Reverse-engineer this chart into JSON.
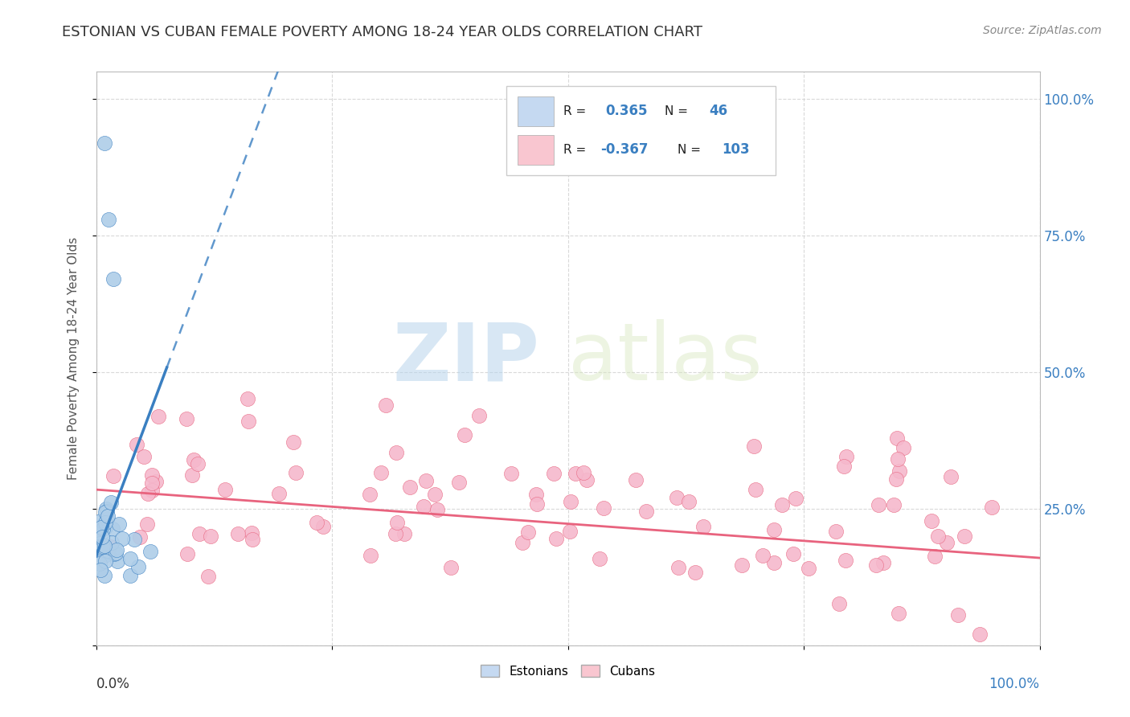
{
  "title": "ESTONIAN VS CUBAN FEMALE POVERTY AMONG 18-24 YEAR OLDS CORRELATION CHART",
  "source": "Source: ZipAtlas.com",
  "ylabel": "Female Poverty Among 18-24 Year Olds",
  "watermark_zip": "ZIP",
  "watermark_atlas": "atlas",
  "r_estonian": 0.365,
  "n_estonian": 46,
  "r_cuban": -0.367,
  "n_cuban": 103,
  "estonian_color": "#aecde8",
  "cuban_color": "#f5b8cc",
  "estonian_line_color": "#3a7fc1",
  "cuban_line_color": "#e8637e",
  "legend_box_estonian": "#c5d9f1",
  "legend_box_cuban": "#f9c6d0",
  "background_color": "#ffffff",
  "title_fontsize": 13,
  "title_color": "#333333",
  "grid_color": "#d0d0d0",
  "tick_color": "#3a7fc1",
  "seed": 7
}
